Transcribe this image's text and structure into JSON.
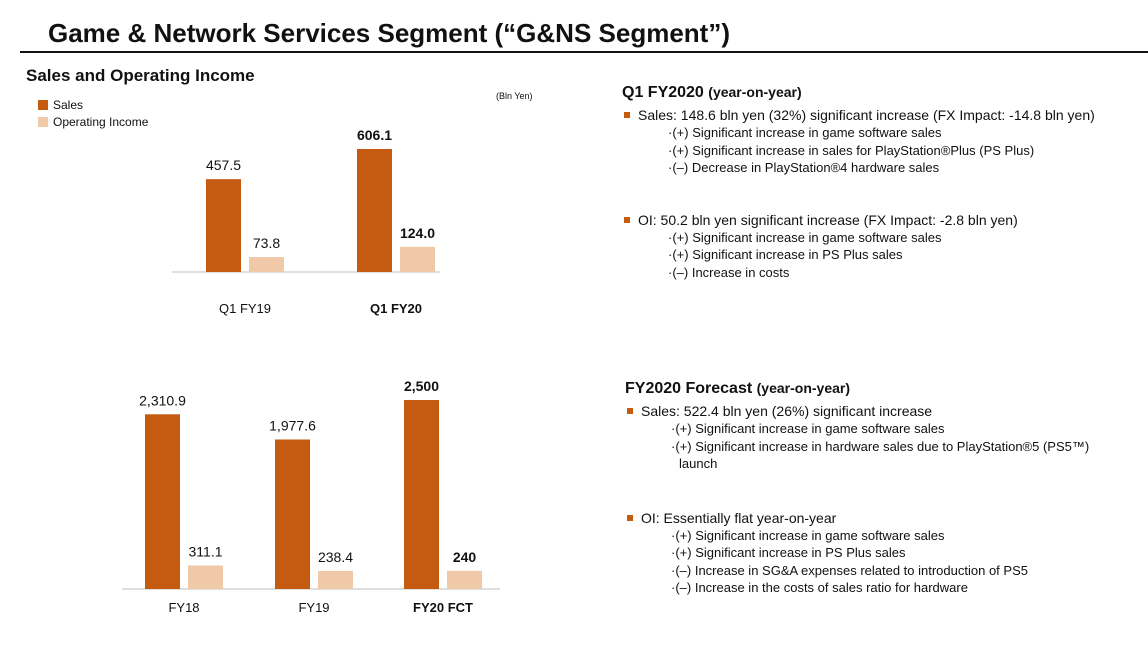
{
  "header": {
    "title": "Game & Network Services Segment (“G&NS Segment”)",
    "subtitle": "Sales and Operating Income",
    "unit": "(Bln Yen)"
  },
  "legend": [
    {
      "label": "Sales",
      "color": "#c55a11"
    },
    {
      "label": "Operating Income",
      "color": "#f0c9a8"
    }
  ],
  "chart_data": [
    {
      "type": "bar",
      "categories": [
        "Q1 FY19",
        "Q1 FY20"
      ],
      "bold_categories": [
        "Q1 FY20"
      ],
      "series": [
        {
          "name": "Sales",
          "values": [
            457.5,
            606.1
          ],
          "labels": [
            "457.5",
            "606.1"
          ]
        },
        {
          "name": "Operating Income",
          "values": [
            73.8,
            124.0
          ],
          "labels": [
            "73.8",
            "124.0"
          ]
        }
      ]
    },
    {
      "type": "bar",
      "categories": [
        "FY18",
        "FY19",
        "FY20 FCT"
      ],
      "bold_categories": [
        "FY20 FCT"
      ],
      "series": [
        {
          "name": "Sales",
          "values": [
            2310.9,
            1977.6,
            2500
          ],
          "labels": [
            "2,310.9",
            "1,977.6",
            "2,500"
          ]
        },
        {
          "name": "Operating Income",
          "values": [
            311.1,
            238.4,
            240
          ],
          "labels": [
            "311.1",
            "238.4",
            "240"
          ]
        }
      ]
    }
  ],
  "q1_panel": {
    "heading": "Q1 FY2020",
    "heading_sub": "(year-on-year)",
    "sales": {
      "text": "Sales: 148.6 bln yen (32%) significant increase (FX Impact: -14.8 bln yen)",
      "details": [
        "·(+) Significant increase in game software sales",
        "·(+) Significant increase in sales for PlayStation®Plus (PS Plus)",
        "·(–) Decrease in PlayStation®4 hardware sales"
      ]
    },
    "oi": {
      "text": "OI: 50.2 bln yen significant increase (FX Impact:  -2.8 bln yen)",
      "details": [
        "·(+) Significant increase in game software sales",
        "·(+) Significant increase in PS Plus sales",
        "·(–) Increase in costs"
      ]
    }
  },
  "fy_panel": {
    "heading": "FY2020 Forecast",
    "heading_sub": "(year-on-year)",
    "sales": {
      "text": "Sales: 522.4 bln yen (26%) significant increase",
      "details": [
        "·(+) Significant increase in game software sales",
        "·(+) Significant increase in hardware sales due to PlayStation®5 (PS5™) launch"
      ]
    },
    "oi": {
      "text": "OI: Essentially flat year-on-year",
      "details": [
        "·(+) Significant increase in game software sales",
        "·(+) Significant increase in PS Plus sales",
        "·(–) Increase in SG&A expenses related to introduction of PS5",
        "·(–) Increase in the costs of sales ratio for hardware"
      ]
    }
  }
}
